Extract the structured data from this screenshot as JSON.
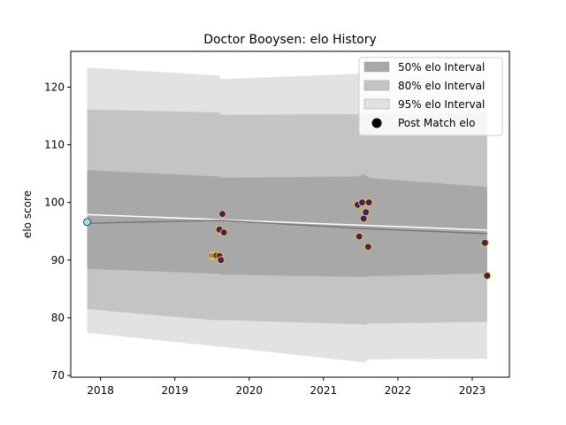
{
  "chart_data": {
    "type": "area",
    "title": "Doctor Booysen: elo History",
    "ylabel": "elo score",
    "xlabel": "",
    "xlim": [
      2017.6,
      2023.5
    ],
    "ylim": [
      69.7,
      126.2
    ],
    "x_ticks": [
      2018,
      2019,
      2020,
      2021,
      2022,
      2023
    ],
    "x_tick_labels": [
      "2018",
      "2019",
      "2020",
      "2021",
      "2022",
      "2023"
    ],
    "y_ticks": [
      70,
      80,
      90,
      100,
      110,
      120
    ],
    "y_tick_labels": [
      "70",
      "80",
      "90",
      "100",
      "110",
      "120"
    ],
    "grid": false,
    "legend": {
      "placement": "top-right",
      "entries": [
        {
          "label": "50% elo Interval",
          "color": "#a8a8a8"
        },
        {
          "label": "80% elo Interval",
          "color": "#c4c4c4"
        },
        {
          "label": "95% elo Interval",
          "color": "#e2e2e2"
        },
        {
          "label": "Post Match elo",
          "color": "#000000"
        }
      ]
    },
    "bands": [
      {
        "name": "95% elo Interval",
        "color": "#e2e2e2",
        "x": [
          2017.82,
          2019.6,
          2019.62,
          2021.45,
          2021.55,
          2021.58,
          2021.62,
          2023.2
        ],
        "upper": [
          123.4,
          122.0,
          121.4,
          122.3,
          122.5,
          122.6,
          122.6,
          122.7
        ],
        "lower": [
          77.4,
          75.0,
          75.0,
          72.4,
          72.2,
          72.6,
          72.8,
          72.9
        ]
      },
      {
        "name": "80% elo Interval",
        "color": "#c4c4c4",
        "x": [
          2017.82,
          2019.6,
          2019.62,
          2021.45,
          2021.55,
          2021.58,
          2021.62,
          2023.2
        ],
        "upper": [
          116.1,
          115.6,
          115.2,
          115.3,
          115.3,
          115.4,
          115.4,
          115.5
        ],
        "lower": [
          81.5,
          79.5,
          79.6,
          78.9,
          78.8,
          78.9,
          79.0,
          79.3
        ]
      },
      {
        "name": "50% elo Interval",
        "color": "#a8a8a8",
        "x": [
          2017.82,
          2019.6,
          2019.62,
          2021.45,
          2021.55,
          2021.58,
          2021.62,
          2023.2
        ],
        "upper": [
          105.6,
          104.5,
          104.3,
          104.5,
          104.9,
          104.6,
          104.2,
          102.7
        ],
        "lower": [
          88.5,
          87.6,
          87.5,
          87.1,
          87.1,
          87.1,
          87.2,
          87.7
        ]
      }
    ],
    "lines": [
      {
        "color": "#ffffff",
        "x": [
          2017.82,
          2023.2
        ],
        "y": [
          97.9,
          95.2
        ]
      },
      {
        "color": "#777777",
        "x": [
          2017.82,
          2019.6,
          2021.5,
          2023.2
        ],
        "y": [
          96.4,
          96.9,
          95.5,
          94.6
        ]
      }
    ],
    "initial_point": {
      "x": 2017.82,
      "y": 96.6,
      "fill": "#add8e6",
      "stroke": "#1f4e79"
    },
    "series": [
      {
        "name": "Post Match elo",
        "fill": "#4b1a6b",
        "stroke": "#e6d31e",
        "points": [
          {
            "x": 2019.5,
            "y": 90.8
          },
          {
            "x": 2019.52,
            "y": 90.8
          },
          {
            "x": 2019.54,
            "y": 90.8
          },
          {
            "x": 2019.56,
            "y": 90.8
          },
          {
            "x": 2019.6,
            "y": 90.7
          },
          {
            "x": 2019.6,
            "y": 95.3
          },
          {
            "x": 2019.62,
            "y": 90.0
          },
          {
            "x": 2019.64,
            "y": 98.0
          },
          {
            "x": 2019.66,
            "y": 94.8
          },
          {
            "x": 2021.46,
            "y": 99.6
          },
          {
            "x": 2021.48,
            "y": 94.1
          },
          {
            "x": 2021.52,
            "y": 100.0
          },
          {
            "x": 2021.54,
            "y": 97.2
          },
          {
            "x": 2021.57,
            "y": 98.3
          },
          {
            "x": 2021.6,
            "y": 92.3
          },
          {
            "x": 2021.61,
            "y": 100.0
          },
          {
            "x": 2023.17,
            "y": 93.0
          },
          {
            "x": 2023.2,
            "y": 87.3
          }
        ]
      }
    ]
  }
}
